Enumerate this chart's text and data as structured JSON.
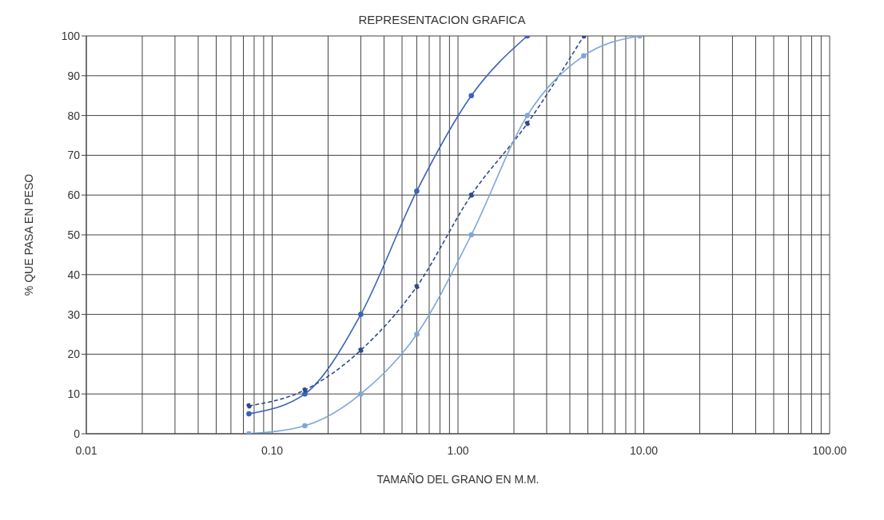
{
  "chart_data": {
    "type": "line",
    "title": "REPRESENTACION GRAFICA",
    "xlabel": "TAMAÑO DEL GRANO EN M.M.",
    "ylabel": "% QUE PASA EN PESO",
    "log": "x",
    "grid": true,
    "legend": false,
    "marker": "circle",
    "xlim": [
      0.01,
      100
    ],
    "xticks": [
      0.01,
      {
        "value": 0.02,
        "label": null
      },
      {
        "value": 0.03,
        "label": null
      },
      {
        "value": 0.04,
        "label": null
      },
      {
        "value": 0.05,
        "label": null
      },
      {
        "value": 0.06,
        "label": null
      },
      {
        "value": 0.07,
        "label": null
      },
      {
        "value": 0.08,
        "label": null
      },
      {
        "value": 0.09,
        "label": null
      },
      {
        "value": 0.1,
        "label": "0.10"
      },
      {
        "value": 0.2,
        "label": null
      },
      {
        "value": 0.3,
        "label": null
      },
      {
        "value": 0.4,
        "label": null
      },
      {
        "value": 0.5,
        "label": null
      },
      {
        "value": 0.6,
        "label": null
      },
      {
        "value": 0.7,
        "label": null
      },
      {
        "value": 0.8,
        "label": null
      },
      {
        "value": 0.9,
        "label": null
      },
      {
        "value": 1,
        "label": "1.00"
      },
      {
        "value": 2,
        "label": null
      },
      {
        "value": 3,
        "label": null
      },
      {
        "value": 4,
        "label": null
      },
      {
        "value": 5,
        "label": null
      },
      {
        "value": 6,
        "label": null
      },
      {
        "value": 7,
        "label": null
      },
      {
        "value": 8,
        "label": null
      },
      {
        "value": 9,
        "label": null
      },
      {
        "value": 10,
        "label": "10.00"
      },
      {
        "value": 20,
        "label": null
      },
      {
        "value": 30,
        "label": null
      },
      {
        "value": 40,
        "label": null
      },
      {
        "value": 50,
        "label": null
      },
      {
        "value": 60,
        "label": null
      },
      {
        "value": 70,
        "label": null
      },
      {
        "value": 80,
        "label": null
      },
      {
        "value": 90,
        "label": null
      },
      {
        "value": 100,
        "label": "100.00"
      }
    ],
    "ylim": [
      0,
      100
    ],
    "yticks": [
      0,
      10,
      20,
      30,
      40,
      50,
      60,
      70,
      80,
      90,
      100
    ],
    "series": [
      {
        "color": "#3a62b8",
        "line_style": "solid",
        "x": [
          0.075,
          0.15,
          0.3,
          0.6,
          1.18,
          2.36
        ],
        "values": [
          5,
          10,
          30,
          61,
          85,
          100
        ]
      },
      {
        "color": "#2f4a8a",
        "line_style": "dashed",
        "x": [
          0.075,
          0.15,
          0.3,
          0.6,
          1.18,
          2.36,
          4.75
        ],
        "values": [
          7,
          11,
          21,
          37,
          60,
          78,
          100
        ]
      },
      {
        "color": "#7fa6dc",
        "line_style": "solid",
        "x": [
          0.075,
          0.15,
          0.3,
          0.6,
          1.18,
          2.36,
          4.75,
          9.5
        ],
        "values": [
          0,
          2,
          10,
          25,
          50,
          80,
          95,
          100
        ]
      }
    ]
  }
}
